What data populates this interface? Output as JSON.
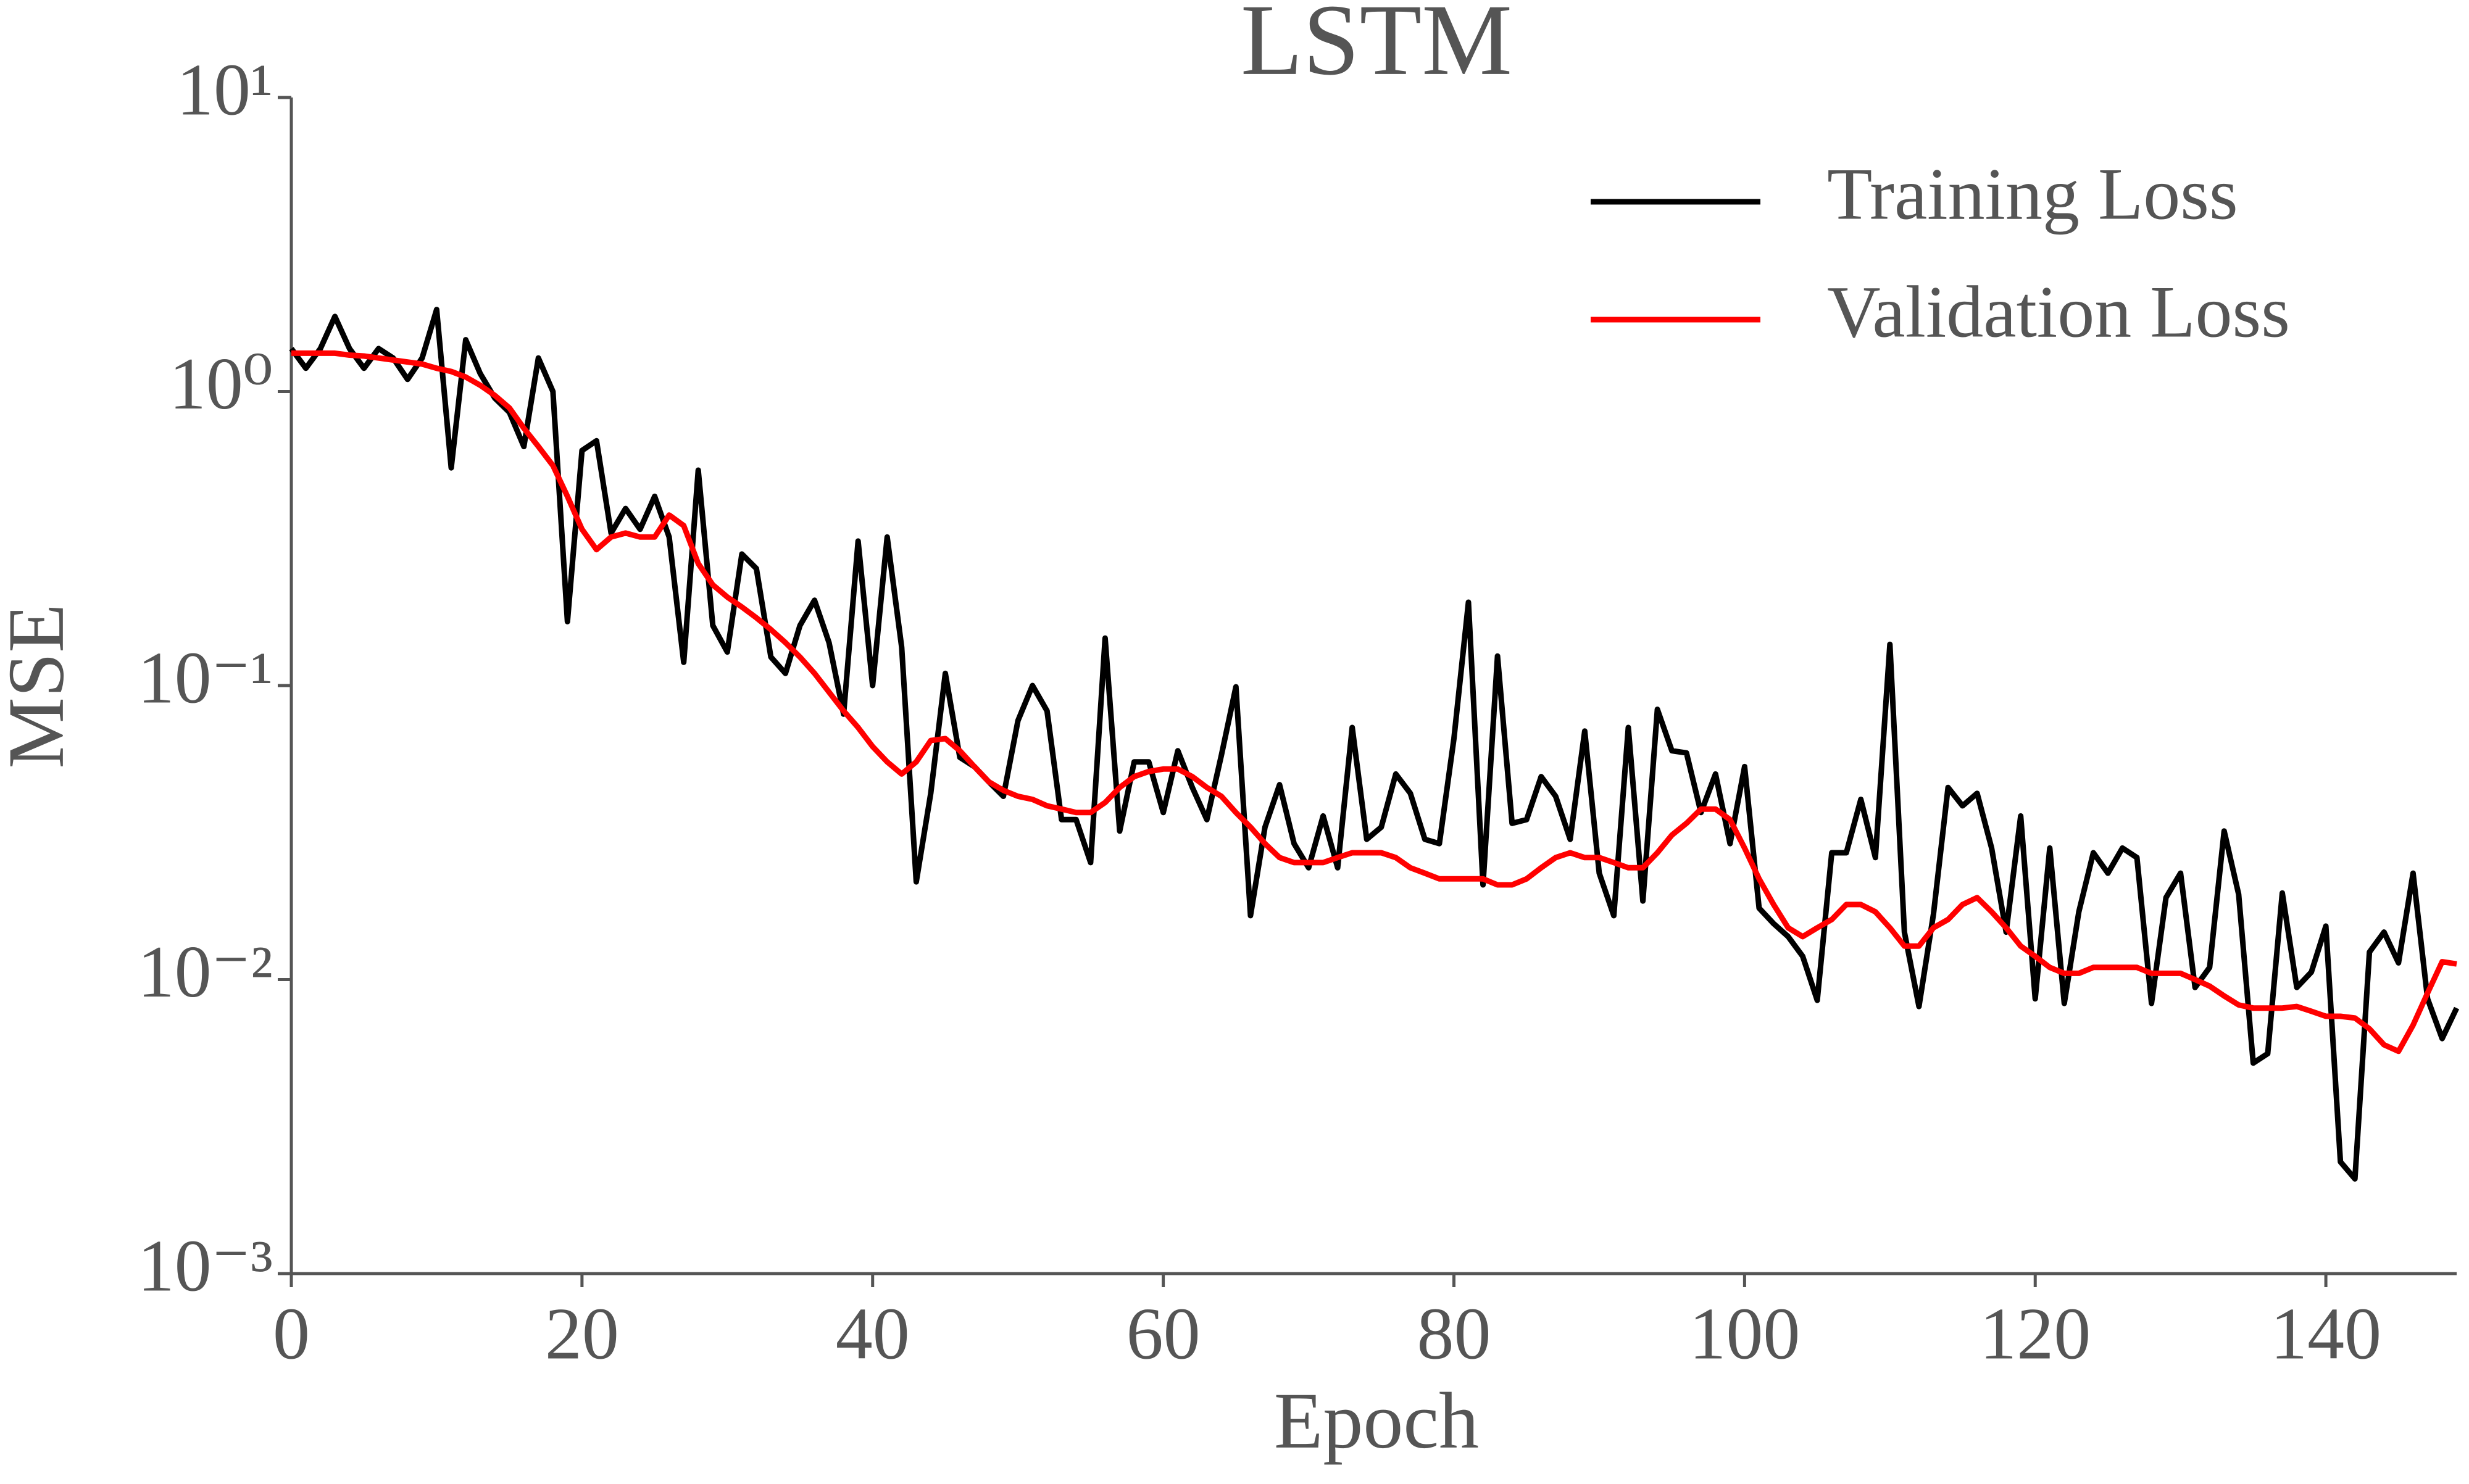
{
  "chart_data": {
    "type": "line",
    "title": "LSTM",
    "xlabel": "Epoch",
    "ylabel": "MSE",
    "yscale": "log",
    "legend": "upper right",
    "x": [
      0,
      1,
      2,
      3,
      4,
      5,
      6,
      7,
      8,
      9,
      10,
      11,
      12,
      13,
      14,
      15,
      16,
      17,
      18,
      19,
      20,
      21,
      22,
      23,
      24,
      25,
      26,
      27,
      28,
      29,
      30,
      31,
      32,
      33,
      34,
      35,
      36,
      37,
      38,
      39,
      40,
      41,
      42,
      43,
      44,
      45,
      46,
      47,
      48,
      49,
      50,
      51,
      52,
      53,
      54,
      55,
      56,
      57,
      58,
      59,
      60,
      61,
      62,
      63,
      64,
      65,
      66,
      67,
      68,
      69,
      70,
      71,
      72,
      73,
      74,
      75,
      76,
      77,
      78,
      79,
      80,
      81,
      82,
      83,
      84,
      85,
      86,
      87,
      88,
      89,
      90,
      91,
      92,
      93,
      94,
      95,
      96,
      97,
      98,
      99,
      100,
      101,
      102,
      103,
      104,
      105,
      106,
      107,
      108,
      109,
      110,
      111,
      112,
      113,
      114,
      115,
      116,
      117,
      118,
      119,
      120,
      121,
      122,
      123,
      124,
      125,
      126,
      127,
      128,
      129,
      130,
      131,
      132,
      133,
      134,
      135,
      136,
      137,
      138,
      139,
      140,
      141,
      142,
      143,
      144,
      145,
      146,
      147,
      148,
      149
    ],
    "series": [
      {
        "name": "Training Loss",
        "color": "#000000",
        "values": [
          1.4,
          1.2,
          1.4,
          1.8,
          1.4,
          1.2,
          1.4,
          1.3,
          1.1,
          1.3,
          1.9,
          0.55,
          1.5,
          1.15,
          0.95,
          0.85,
          0.65,
          1.3,
          1.0,
          0.165,
          0.63,
          0.68,
          0.33,
          0.4,
          0.34,
          0.44,
          0.32,
          0.12,
          0.54,
          0.16,
          0.13,
          0.28,
          0.25,
          0.125,
          0.11,
          0.16,
          0.195,
          0.14,
          0.08,
          0.31,
          0.1,
          0.32,
          0.135,
          0.0215,
          0.043,
          0.11,
          0.057,
          0.053,
          0.047,
          0.042,
          0.076,
          0.1,
          0.082,
          0.035,
          0.035,
          0.025,
          0.145,
          0.032,
          0.055,
          0.055,
          0.037,
          0.06,
          0.045,
          0.035,
          0.058,
          0.099,
          0.0165,
          0.033,
          0.046,
          0.029,
          0.024,
          0.036,
          0.024,
          0.072,
          0.03,
          0.033,
          0.05,
          0.043,
          0.03,
          0.029,
          0.066,
          0.192,
          0.021,
          0.126,
          0.034,
          0.035,
          0.049,
          0.042,
          0.03,
          0.07,
          0.023,
          0.0165,
          0.072,
          0.0185,
          0.083,
          0.06,
          0.059,
          0.037,
          0.05,
          0.029,
          0.053,
          0.0175,
          0.0155,
          0.014,
          0.012,
          0.0085,
          0.027,
          0.027,
          0.041,
          0.026,
          0.138,
          0.0145,
          0.0081,
          0.0167,
          0.045,
          0.039,
          0.043,
          0.028,
          0.0145,
          0.036,
          0.0086,
          0.028,
          0.0083,
          0.017,
          0.027,
          0.023,
          0.028,
          0.026,
          0.0083,
          0.019,
          0.023,
          0.0094,
          0.011,
          0.032,
          0.0195,
          0.0052,
          0.0056,
          0.0197,
          0.0094,
          0.0106,
          0.0152,
          0.0024,
          0.0021,
          0.0124,
          0.0145,
          0.0114,
          0.023,
          0.0086,
          0.0063,
          0.008
        ]
      },
      {
        "name": "Validation Loss",
        "color": "#ff0000",
        "values": [
          1.35,
          1.35,
          1.35,
          1.35,
          1.33,
          1.32,
          1.3,
          1.28,
          1.26,
          1.24,
          1.2,
          1.17,
          1.12,
          1.05,
          0.97,
          0.88,
          0.75,
          0.65,
          0.56,
          0.44,
          0.34,
          0.29,
          0.32,
          0.33,
          0.32,
          0.32,
          0.38,
          0.35,
          0.26,
          0.22,
          0.2,
          0.185,
          0.17,
          0.155,
          0.14,
          0.125,
          0.11,
          0.095,
          0.082,
          0.072,
          0.062,
          0.055,
          0.05,
          0.055,
          0.065,
          0.066,
          0.06,
          0.053,
          0.047,
          0.044,
          0.042,
          0.041,
          0.039,
          0.038,
          0.037,
          0.037,
          0.04,
          0.045,
          0.049,
          0.051,
          0.052,
          0.052,
          0.049,
          0.045,
          0.042,
          0.037,
          0.033,
          0.029,
          0.026,
          0.025,
          0.025,
          0.025,
          0.026,
          0.027,
          0.027,
          0.027,
          0.026,
          0.024,
          0.023,
          0.022,
          0.022,
          0.022,
          0.022,
          0.021,
          0.021,
          0.022,
          0.024,
          0.026,
          0.027,
          0.026,
          0.026,
          0.025,
          0.024,
          0.024,
          0.027,
          0.031,
          0.034,
          0.038,
          0.038,
          0.035,
          0.028,
          0.022,
          0.018,
          0.015,
          0.014,
          0.015,
          0.016,
          0.018,
          0.018,
          0.017,
          0.015,
          0.013,
          0.013,
          0.015,
          0.016,
          0.018,
          0.019,
          0.017,
          0.015,
          0.013,
          0.012,
          0.011,
          0.0105,
          0.0105,
          0.011,
          0.011,
          0.011,
          0.011,
          0.0105,
          0.0105,
          0.0105,
          0.01,
          0.0095,
          0.0088,
          0.0082,
          0.008,
          0.008,
          0.008,
          0.0081,
          0.0078,
          0.0075,
          0.0075,
          0.0074,
          0.0068,
          0.006,
          0.0057,
          0.007,
          0.009,
          0.0115,
          0.0113
        ]
      }
    ],
    "xlim": [
      0,
      149
    ],
    "xticks": [
      0,
      20,
      40,
      60,
      80,
      100,
      120,
      140
    ],
    "ylim": [
      0.001,
      10
    ],
    "yticks": [
      {
        "value": 0.001,
        "label": "10⁻³"
      },
      {
        "value": 0.01,
        "label": "10⁻²"
      },
      {
        "value": 0.1,
        "label": "10⁻¹"
      },
      {
        "value": 1,
        "label": "10⁰"
      },
      {
        "value": 10,
        "label": "10¹"
      }
    ]
  }
}
